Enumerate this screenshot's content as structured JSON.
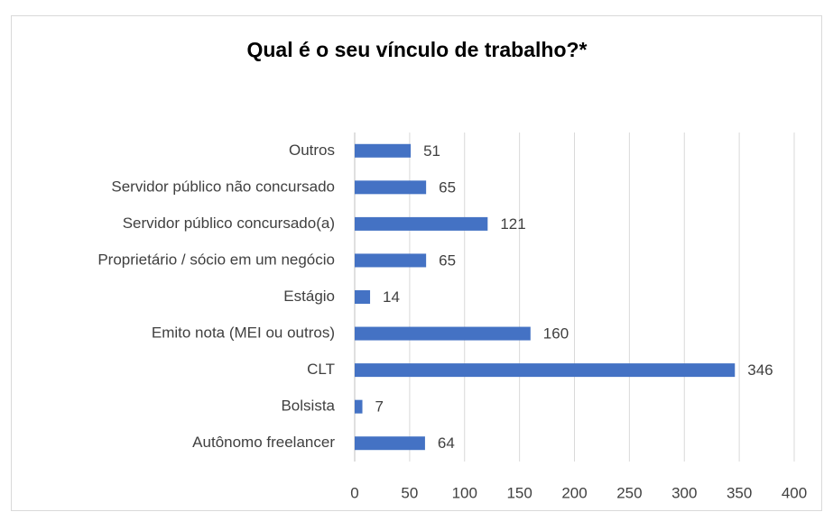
{
  "chart_data": {
    "type": "bar",
    "orientation": "horizontal",
    "title": "Qual é o seu vínculo de trabalho?*",
    "categories": [
      "Outros",
      "Servidor público não concursado",
      "Servidor público concursado(a)",
      "Proprietário / sócio em um negócio",
      "Estágio",
      "Emito nota (MEI ou outros)",
      "CLT",
      "Bolsista",
      "Autônomo freelancer"
    ],
    "values": [
      51,
      65,
      121,
      65,
      14,
      160,
      346,
      7,
      64
    ],
    "color": "#4472c4",
    "xlim": [
      0,
      400
    ],
    "xticks": [
      0,
      50,
      100,
      150,
      200,
      250,
      300,
      350,
      400
    ],
    "grid": true
  }
}
